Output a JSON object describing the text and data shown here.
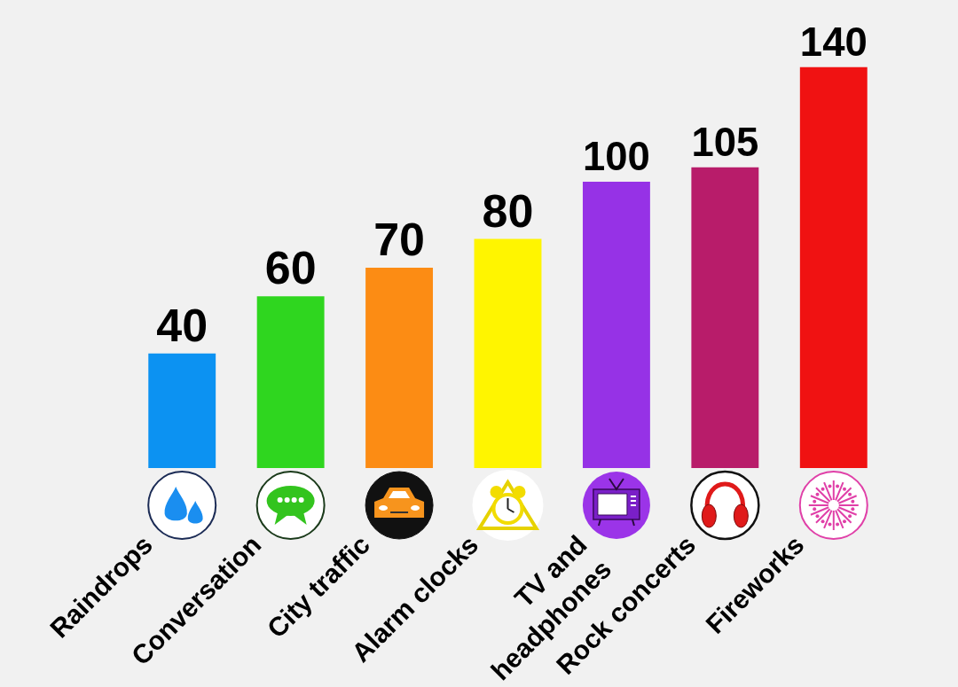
{
  "chart_data": {
    "type": "bar",
    "categories": [
      "Raindrops",
      "Conversation",
      "City traffic",
      "Alarm clocks",
      "TV and headphones",
      "Rock concerts",
      "Fireworks"
    ],
    "values": [
      40,
      60,
      70,
      80,
      100,
      105,
      140
    ],
    "colors": [
      "#0c92f2",
      "#2fd61f",
      "#fc8c14",
      "#fff500",
      "#9632e6",
      "#b81c6a",
      "#f01212"
    ],
    "data_labels": true,
    "tick_labels": "x"
  }
}
